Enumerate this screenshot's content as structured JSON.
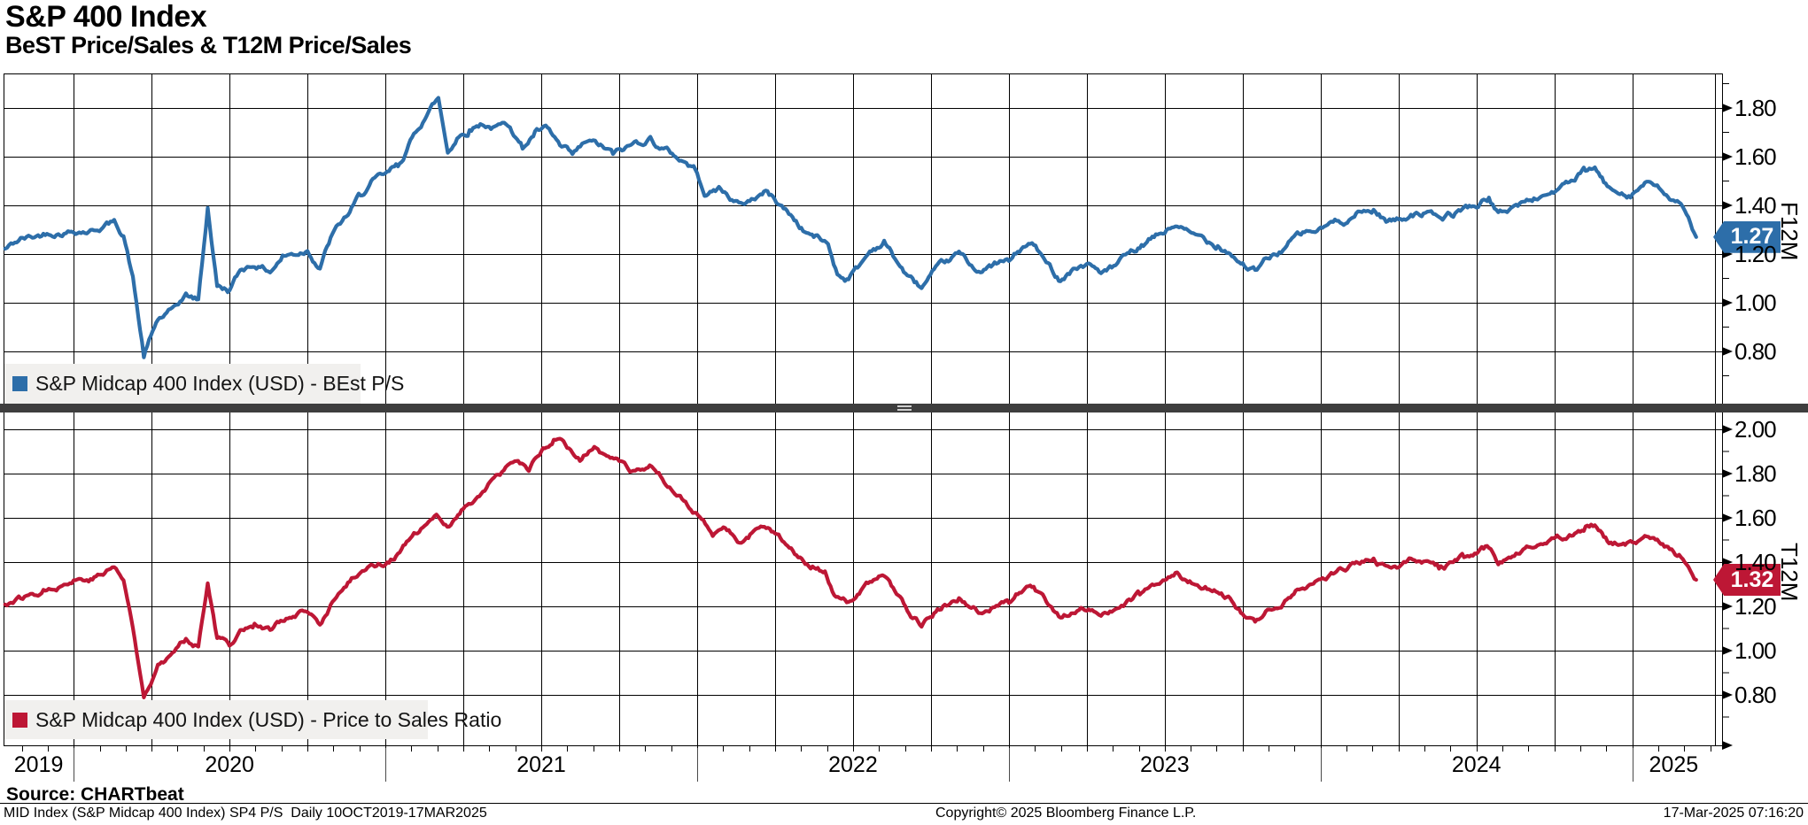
{
  "header": {
    "title": "S&P 400 Index",
    "subtitle": "BeST Price/Sales & T12M Price/Sales"
  },
  "panels": [
    {
      "id": "f12m",
      "legend": "S&P Midcap 400 Index (USD) - BEst P/S",
      "axis_title": "F12M",
      "last_value": "1.27",
      "color": "#2d6ea9",
      "ticks": [
        "1.80",
        "1.60",
        "1.40",
        "1.20",
        "1.00",
        "0.80"
      ]
    },
    {
      "id": "t12m",
      "legend": "S&P Midcap 400 Index (USD) - Price to Sales Ratio",
      "axis_title": "T12M",
      "last_value": "1.32",
      "color": "#bd1735",
      "ticks": [
        "2.00",
        "1.80",
        "1.60",
        "1.40",
        "1.20",
        "1.00",
        "0.80"
      ]
    }
  ],
  "x_axis": {
    "years": [
      "2019",
      "2020",
      "2021",
      "2022",
      "2023",
      "2024",
      "2025"
    ]
  },
  "footer": {
    "source": "Source: CHARTbeat",
    "status_left": "MID Index (S&P Midcap 400 Index) SP4 P/S  Daily 10OCT2019-17MAR2025",
    "copyright": "Copyright© 2025 Bloomberg Finance L.P.",
    "timestamp": "17-Mar-2025 07:16:20"
  },
  "chart_data": [
    {
      "type": "line",
      "title": "S&P Midcap 400 Index (USD) - BEst P/S",
      "ylabel": "F12M",
      "legend_position": "bottom-left",
      "grid": true,
      "x_format": "decimal_year",
      "x_range": [
        "2019-10-10",
        "2025-03-17"
      ],
      "ylim": [
        0.58,
        1.94
      ],
      "tick_interval": 0.2,
      "last_value": 1.27,
      "points": [
        [
          2019.78,
          1.22
        ],
        [
          2019.83,
          1.26
        ],
        [
          2019.88,
          1.27
        ],
        [
          2019.92,
          1.29
        ],
        [
          2020.0,
          1.3
        ],
        [
          2020.06,
          1.3
        ],
        [
          2020.1,
          1.32
        ],
        [
          2020.13,
          1.33
        ],
        [
          2020.16,
          1.28
        ],
        [
          2020.19,
          1.1
        ],
        [
          2020.225,
          0.78
        ],
        [
          2020.27,
          0.93
        ],
        [
          2020.31,
          0.96
        ],
        [
          2020.36,
          1.03
        ],
        [
          2020.4,
          1.01
        ],
        [
          2020.43,
          1.39
        ],
        [
          2020.46,
          1.07
        ],
        [
          2020.5,
          1.05
        ],
        [
          2020.54,
          1.14
        ],
        [
          2020.58,
          1.16
        ],
        [
          2020.63,
          1.13
        ],
        [
          2020.67,
          1.19
        ],
        [
          2020.71,
          1.2
        ],
        [
          2020.75,
          1.22
        ],
        [
          2020.79,
          1.15
        ],
        [
          2020.83,
          1.28
        ],
        [
          2020.88,
          1.36
        ],
        [
          2020.92,
          1.44
        ],
        [
          2020.96,
          1.5
        ],
        [
          2021.0,
          1.52
        ],
        [
          2021.04,
          1.56
        ],
        [
          2021.08,
          1.66
        ],
        [
          2021.12,
          1.75
        ],
        [
          2021.15,
          1.81
        ],
        [
          2021.17,
          1.84
        ],
        [
          2021.2,
          1.62
        ],
        [
          2021.23,
          1.68
        ],
        [
          2021.27,
          1.71
        ],
        [
          2021.31,
          1.74
        ],
        [
          2021.35,
          1.72
        ],
        [
          2021.4,
          1.73
        ],
        [
          2021.44,
          1.64
        ],
        [
          2021.48,
          1.7
        ],
        [
          2021.52,
          1.71
        ],
        [
          2021.56,
          1.64
        ],
        [
          2021.6,
          1.6
        ],
        [
          2021.65,
          1.66
        ],
        [
          2021.69,
          1.64
        ],
        [
          2021.73,
          1.61
        ],
        [
          2021.77,
          1.63
        ],
        [
          2021.81,
          1.66
        ],
        [
          2021.85,
          1.68
        ],
        [
          2021.88,
          1.64
        ],
        [
          2021.92,
          1.61
        ],
        [
          2021.96,
          1.58
        ],
        [
          2022.0,
          1.54
        ],
        [
          2022.03,
          1.44
        ],
        [
          2022.07,
          1.47
        ],
        [
          2022.1,
          1.44
        ],
        [
          2022.14,
          1.4
        ],
        [
          2022.18,
          1.43
        ],
        [
          2022.22,
          1.46
        ],
        [
          2022.26,
          1.41
        ],
        [
          2022.3,
          1.36
        ],
        [
          2022.34,
          1.3
        ],
        [
          2022.38,
          1.27
        ],
        [
          2022.42,
          1.24
        ],
        [
          2022.45,
          1.12
        ],
        [
          2022.48,
          1.1
        ],
        [
          2022.52,
          1.15
        ],
        [
          2022.56,
          1.22
        ],
        [
          2022.6,
          1.25
        ],
        [
          2022.64,
          1.17
        ],
        [
          2022.68,
          1.1
        ],
        [
          2022.72,
          1.06
        ],
        [
          2022.76,
          1.12
        ],
        [
          2022.8,
          1.16
        ],
        [
          2022.84,
          1.2
        ],
        [
          2022.88,
          1.15
        ],
        [
          2022.92,
          1.13
        ],
        [
          2022.96,
          1.16
        ],
        [
          2023.0,
          1.17
        ],
        [
          2023.04,
          1.22
        ],
        [
          2023.08,
          1.24
        ],
        [
          2023.12,
          1.16
        ],
        [
          2023.16,
          1.1
        ],
        [
          2023.2,
          1.14
        ],
        [
          2023.25,
          1.16
        ],
        [
          2023.29,
          1.13
        ],
        [
          2023.33,
          1.14
        ],
        [
          2023.38,
          1.19
        ],
        [
          2023.42,
          1.22
        ],
        [
          2023.46,
          1.26
        ],
        [
          2023.5,
          1.29
        ],
        [
          2023.54,
          1.32
        ],
        [
          2023.58,
          1.28
        ],
        [
          2023.63,
          1.26
        ],
        [
          2023.67,
          1.24
        ],
        [
          2023.71,
          1.21
        ],
        [
          2023.75,
          1.16
        ],
        [
          2023.79,
          1.13
        ],
        [
          2023.83,
          1.18
        ],
        [
          2023.88,
          1.22
        ],
        [
          2023.92,
          1.27
        ],
        [
          2023.96,
          1.29
        ],
        [
          2024.0,
          1.3
        ],
        [
          2024.04,
          1.33
        ],
        [
          2024.08,
          1.34
        ],
        [
          2024.12,
          1.37
        ],
        [
          2024.17,
          1.38
        ],
        [
          2024.21,
          1.34
        ],
        [
          2024.25,
          1.34
        ],
        [
          2024.29,
          1.37
        ],
        [
          2024.33,
          1.37
        ],
        [
          2024.38,
          1.34
        ],
        [
          2024.42,
          1.36
        ],
        [
          2024.46,
          1.39
        ],
        [
          2024.5,
          1.4
        ],
        [
          2024.54,
          1.43
        ],
        [
          2024.57,
          1.36
        ],
        [
          2024.61,
          1.39
        ],
        [
          2024.65,
          1.41
        ],
        [
          2024.69,
          1.43
        ],
        [
          2024.73,
          1.45
        ],
        [
          2024.77,
          1.47
        ],
        [
          2024.81,
          1.5
        ],
        [
          2024.85,
          1.54
        ],
        [
          2024.88,
          1.55
        ],
        [
          2024.92,
          1.47
        ],
        [
          2024.96,
          1.46
        ],
        [
          2025.0,
          1.45
        ],
        [
          2025.04,
          1.49
        ],
        [
          2025.08,
          1.47
        ],
        [
          2025.12,
          1.43
        ],
        [
          2025.15,
          1.4
        ],
        [
          2025.18,
          1.34
        ],
        [
          2025.205,
          1.27
        ]
      ]
    },
    {
      "type": "line",
      "title": "S&P Midcap 400 Index (USD) - Price to Sales Ratio",
      "ylabel": "T12M",
      "legend_position": "bottom-left",
      "grid": true,
      "x_format": "decimal_year",
      "x_range": [
        "2019-10-10",
        "2025-03-17"
      ],
      "ylim": [
        0.57,
        2.08
      ],
      "tick_interval": 0.2,
      "last_value": 1.32,
      "points": [
        [
          2019.78,
          1.21
        ],
        [
          2019.83,
          1.24
        ],
        [
          2019.88,
          1.26
        ],
        [
          2019.92,
          1.29
        ],
        [
          2020.0,
          1.32
        ],
        [
          2020.06,
          1.33
        ],
        [
          2020.1,
          1.35
        ],
        [
          2020.13,
          1.38
        ],
        [
          2020.16,
          1.32
        ],
        [
          2020.19,
          1.1
        ],
        [
          2020.225,
          0.79
        ],
        [
          2020.27,
          0.95
        ],
        [
          2020.31,
          0.98
        ],
        [
          2020.36,
          1.05
        ],
        [
          2020.4,
          1.03
        ],
        [
          2020.43,
          1.32
        ],
        [
          2020.46,
          1.06
        ],
        [
          2020.5,
          1.03
        ],
        [
          2020.54,
          1.1
        ],
        [
          2020.58,
          1.12
        ],
        [
          2020.63,
          1.09
        ],
        [
          2020.67,
          1.14
        ],
        [
          2020.71,
          1.15
        ],
        [
          2020.75,
          1.17
        ],
        [
          2020.79,
          1.11
        ],
        [
          2020.83,
          1.22
        ],
        [
          2020.88,
          1.3
        ],
        [
          2020.92,
          1.36
        ],
        [
          2020.96,
          1.39
        ],
        [
          2021.0,
          1.4
        ],
        [
          2021.04,
          1.44
        ],
        [
          2021.08,
          1.5
        ],
        [
          2021.12,
          1.55
        ],
        [
          2021.17,
          1.6
        ],
        [
          2021.21,
          1.57
        ],
        [
          2021.25,
          1.64
        ],
        [
          2021.29,
          1.69
        ],
        [
          2021.33,
          1.75
        ],
        [
          2021.38,
          1.8
        ],
        [
          2021.42,
          1.86
        ],
        [
          2021.46,
          1.82
        ],
        [
          2021.5,
          1.9
        ],
        [
          2021.54,
          1.95
        ],
        [
          2021.56,
          1.96
        ],
        [
          2021.6,
          1.89
        ],
        [
          2021.63,
          1.86
        ],
        [
          2021.67,
          1.92
        ],
        [
          2021.71,
          1.87
        ],
        [
          2021.75,
          1.84
        ],
        [
          2021.79,
          1.8
        ],
        [
          2021.83,
          1.8
        ],
        [
          2021.86,
          1.82
        ],
        [
          2021.9,
          1.76
        ],
        [
          2021.94,
          1.72
        ],
        [
          2021.98,
          1.65
        ],
        [
          2022.02,
          1.58
        ],
        [
          2022.05,
          1.52
        ],
        [
          2022.09,
          1.56
        ],
        [
          2022.13,
          1.5
        ],
        [
          2022.17,
          1.53
        ],
        [
          2022.21,
          1.56
        ],
        [
          2022.25,
          1.52
        ],
        [
          2022.29,
          1.46
        ],
        [
          2022.33,
          1.42
        ],
        [
          2022.37,
          1.39
        ],
        [
          2022.41,
          1.36
        ],
        [
          2022.44,
          1.24
        ],
        [
          2022.48,
          1.21
        ],
        [
          2022.52,
          1.25
        ],
        [
          2022.56,
          1.31
        ],
        [
          2022.6,
          1.34
        ],
        [
          2022.64,
          1.25
        ],
        [
          2022.68,
          1.17
        ],
        [
          2022.72,
          1.12
        ],
        [
          2022.76,
          1.17
        ],
        [
          2022.8,
          1.21
        ],
        [
          2022.84,
          1.25
        ],
        [
          2022.88,
          1.2
        ],
        [
          2022.92,
          1.17
        ],
        [
          2022.96,
          1.21
        ],
        [
          2023.0,
          1.21
        ],
        [
          2023.04,
          1.27
        ],
        [
          2023.08,
          1.29
        ],
        [
          2023.12,
          1.21
        ],
        [
          2023.16,
          1.15
        ],
        [
          2023.2,
          1.18
        ],
        [
          2023.25,
          1.19
        ],
        [
          2023.29,
          1.16
        ],
        [
          2023.33,
          1.17
        ],
        [
          2023.38,
          1.22
        ],
        [
          2023.42,
          1.25
        ],
        [
          2023.46,
          1.29
        ],
        [
          2023.5,
          1.32
        ],
        [
          2023.54,
          1.35
        ],
        [
          2023.58,
          1.31
        ],
        [
          2023.63,
          1.29
        ],
        [
          2023.67,
          1.27
        ],
        [
          2023.71,
          1.23
        ],
        [
          2023.75,
          1.17
        ],
        [
          2023.79,
          1.13
        ],
        [
          2023.83,
          1.18
        ],
        [
          2023.88,
          1.22
        ],
        [
          2023.92,
          1.27
        ],
        [
          2023.96,
          1.3
        ],
        [
          2024.0,
          1.32
        ],
        [
          2024.04,
          1.35
        ],
        [
          2024.08,
          1.37
        ],
        [
          2024.12,
          1.4
        ],
        [
          2024.17,
          1.41
        ],
        [
          2024.21,
          1.37
        ],
        [
          2024.25,
          1.37
        ],
        [
          2024.29,
          1.4
        ],
        [
          2024.33,
          1.4
        ],
        [
          2024.38,
          1.37
        ],
        [
          2024.42,
          1.39
        ],
        [
          2024.46,
          1.42
        ],
        [
          2024.5,
          1.43
        ],
        [
          2024.54,
          1.46
        ],
        [
          2024.57,
          1.4
        ],
        [
          2024.61,
          1.43
        ],
        [
          2024.65,
          1.45
        ],
        [
          2024.69,
          1.47
        ],
        [
          2024.73,
          1.49
        ],
        [
          2024.77,
          1.51
        ],
        [
          2024.81,
          1.53
        ],
        [
          2024.85,
          1.56
        ],
        [
          2024.88,
          1.57
        ],
        [
          2024.92,
          1.5
        ],
        [
          2024.96,
          1.49
        ],
        [
          2025.0,
          1.48
        ],
        [
          2025.04,
          1.52
        ],
        [
          2025.08,
          1.5
        ],
        [
          2025.12,
          1.46
        ],
        [
          2025.15,
          1.43
        ],
        [
          2025.18,
          1.37
        ],
        [
          2025.205,
          1.32
        ]
      ]
    }
  ]
}
